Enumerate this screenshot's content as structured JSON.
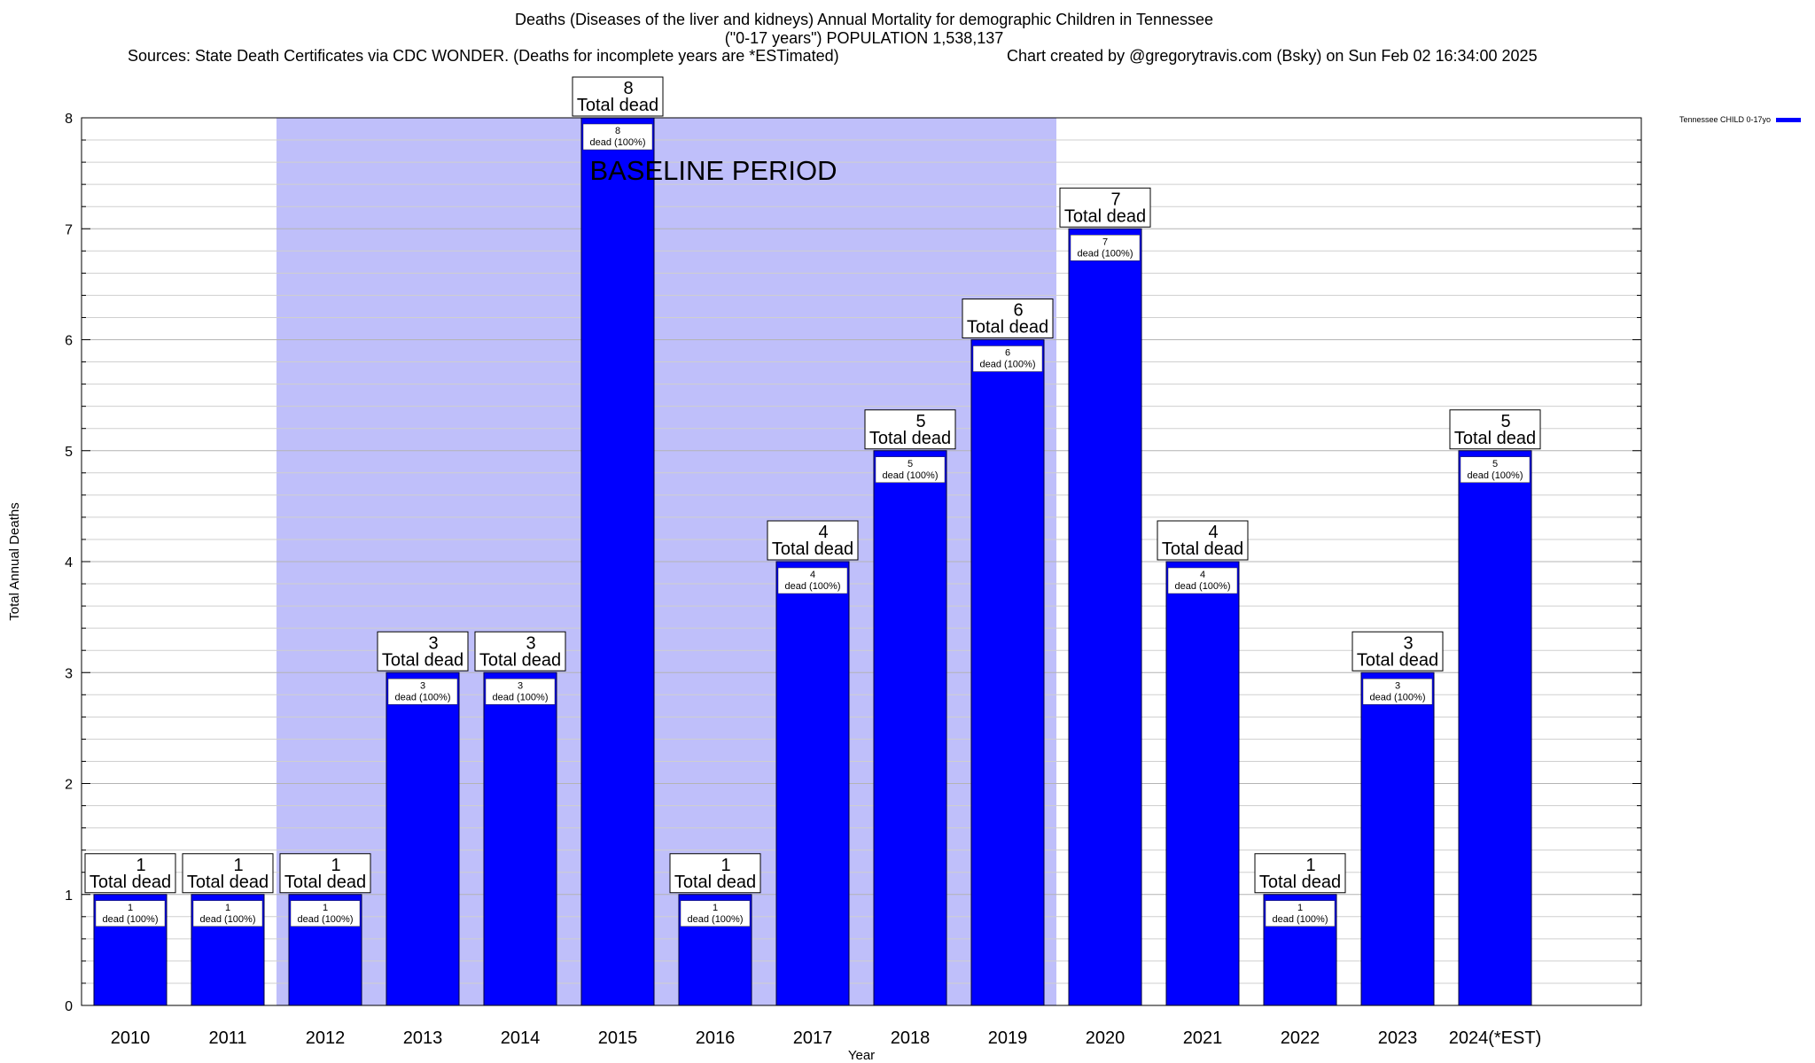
{
  "header": {
    "title_line1": "Deaths (Diseases of the liver and kidneys) Annual Mortality for demographic Children in Tennessee",
    "title_line2": "(\"0-17 years\") POPULATION 1,538,137",
    "sources": "Sources: State Death Certificates via CDC WONDER. (Deaths for incomplete years are *ESTimated)",
    "credit": "Chart created by @gregorytravis.com (Bsky) on Sun Feb 02 16:34:00 2025"
  },
  "chart_data": {
    "type": "bar",
    "title": "Deaths (Diseases of the liver and kidneys) Annual Mortality for demographic Children in Tennessee",
    "xlabel": "Year",
    "ylabel": "Total Annual Deaths",
    "ylim": [
      0,
      8
    ],
    "y_ticks": [
      0,
      1,
      2,
      3,
      4,
      5,
      6,
      7,
      8
    ],
    "minor_tick_step": 0.2,
    "grid": true,
    "categories": [
      "2010",
      "2011",
      "2012",
      "2013",
      "2014",
      "2015",
      "2016",
      "2017",
      "2018",
      "2019",
      "2020",
      "2021",
      "2022",
      "2023",
      "2024(*EST)"
    ],
    "series": [
      {
        "name": "Tennessee CHILD 0-17yo",
        "color": "#0000ff",
        "values": [
          1,
          1,
          1,
          3,
          3,
          8,
          1,
          4,
          5,
          6,
          7,
          4,
          1,
          3,
          5
        ]
      }
    ],
    "total_label_text": "Total dead",
    "inner_label_suffix": "dead (100%)",
    "baseline": {
      "label": "BASELINE PERIOD",
      "from": "2012",
      "to": "2019",
      "color": "#bfbffa"
    },
    "legend": {
      "entries": [
        "Tennessee CHILD 0-17yo"
      ],
      "placement": "top-right outside"
    }
  }
}
